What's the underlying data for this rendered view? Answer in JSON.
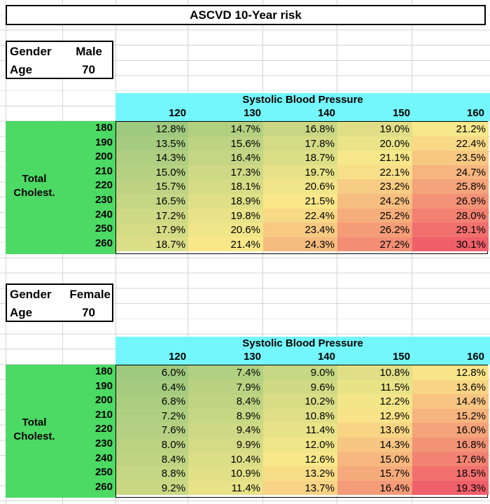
{
  "title": "ASCVD 10-Year risk",
  "male": {
    "gender_label": "Gender",
    "gender_value": "Male",
    "age_label": "Age",
    "age_value": "70",
    "sbp_title": "Systolic Blood Pressure",
    "sbp_columns": [
      "120",
      "130",
      "140",
      "150",
      "160"
    ],
    "chol_label_line1": "Total",
    "chol_label_line2": "Cholest.",
    "chol_rows": [
      "180",
      "190",
      "200",
      "210",
      "220",
      "230",
      "240",
      "250",
      "260"
    ],
    "values": [
      [
        "12.8%",
        "14.7%",
        "16.8%",
        "19.0%",
        "21.2%"
      ],
      [
        "13.5%",
        "15.6%",
        "17.8%",
        "20.0%",
        "22.4%"
      ],
      [
        "14.3%",
        "16.4%",
        "18.7%",
        "21.1%",
        "23.5%"
      ],
      [
        "15.0%",
        "17.3%",
        "19.7%",
        "22.1%",
        "24.7%"
      ],
      [
        "15.7%",
        "18.1%",
        "20.6%",
        "23.2%",
        "25.8%"
      ],
      [
        "16.5%",
        "18.9%",
        "21.5%",
        "24.2%",
        "26.9%"
      ],
      [
        "17.2%",
        "19.8%",
        "22.4%",
        "25.2%",
        "28.0%"
      ],
      [
        "17.9%",
        "20.6%",
        "23.4%",
        "26.2%",
        "29.1%"
      ],
      [
        "18.7%",
        "21.4%",
        "24.3%",
        "27.2%",
        "30.1%"
      ]
    ]
  },
  "female": {
    "gender_label": "Gender",
    "gender_value": "Female",
    "age_label": "Age",
    "age_value": "70",
    "sbp_title": "Systolic Blood Pressure",
    "sbp_columns": [
      "120",
      "130",
      "140",
      "150",
      "160"
    ],
    "chol_label_line1": "Total",
    "chol_label_line2": "Cholest.",
    "chol_rows": [
      "180",
      "190",
      "200",
      "210",
      "220",
      "230",
      "240",
      "250",
      "260"
    ],
    "values": [
      [
        "6.0%",
        "7.4%",
        "9.0%",
        "10.8%",
        "12.8%"
      ],
      [
        "6.4%",
        "7.9%",
        "9.6%",
        "11.5%",
        "13.6%"
      ],
      [
        "6.8%",
        "8.4%",
        "10.2%",
        "12.2%",
        "14.4%"
      ],
      [
        "7.2%",
        "8.9%",
        "10.8%",
        "12.9%",
        "15.2%"
      ],
      [
        "7.6%",
        "9.4%",
        "11.4%",
        "13.6%",
        "16.0%"
      ],
      [
        "8.0%",
        "9.9%",
        "12.0%",
        "14.3%",
        "16.8%"
      ],
      [
        "8.4%",
        "10.4%",
        "12.6%",
        "15.0%",
        "17.6%"
      ],
      [
        "8.8%",
        "10.9%",
        "13.2%",
        "15.7%",
        "18.5%"
      ],
      [
        "9.2%",
        "11.4%",
        "13.7%",
        "16.4%",
        "19.3%"
      ]
    ]
  },
  "colors": {
    "sbp_header_bg": "#73f7fc",
    "chol_header_bg": "#4cd964",
    "scale_low": "#9fc97f",
    "scale_mid": "#f9e88a",
    "scale_high": "#f0606a",
    "gridline": "#d4d4d4"
  }
}
